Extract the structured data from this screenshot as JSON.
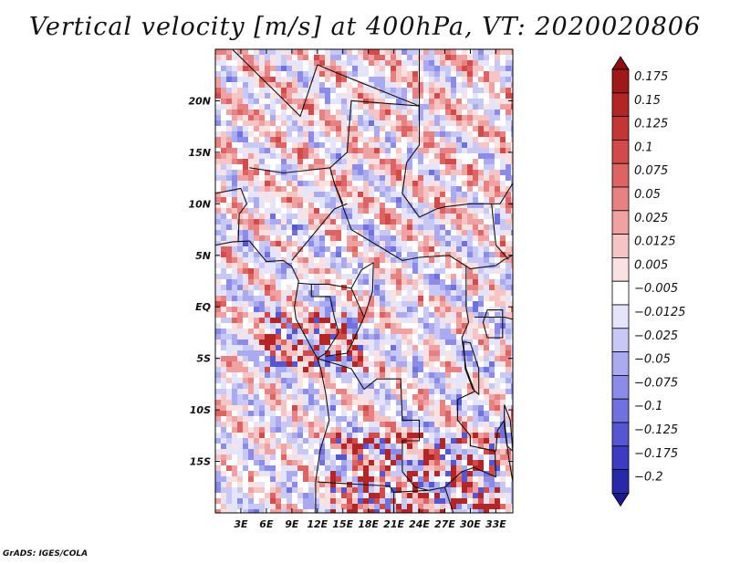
{
  "title": "Vertical velocity [m/s] at 400hPa, VT: 2020020806",
  "footer": "GrADS: IGES/COLA",
  "map": {
    "lon_range": [
      0,
      35
    ],
    "lat_range": [
      -20,
      25
    ],
    "lat_ticks": [
      {
        "value": 20,
        "label": "20N"
      },
      {
        "value": 15,
        "label": "15N"
      },
      {
        "value": 10,
        "label": "10N"
      },
      {
        "value": 5,
        "label": "5N"
      },
      {
        "value": 0,
        "label": "EQ"
      },
      {
        "value": -5,
        "label": "5S"
      },
      {
        "value": -10,
        "label": "10S"
      },
      {
        "value": -15,
        "label": "15S"
      }
    ],
    "lon_ticks": [
      {
        "value": 3,
        "label": "3E"
      },
      {
        "value": 6,
        "label": "6E"
      },
      {
        "value": 9,
        "label": "9E"
      },
      {
        "value": 12,
        "label": "12E"
      },
      {
        "value": 15,
        "label": "15E"
      },
      {
        "value": 18,
        "label": "18E"
      },
      {
        "value": 21,
        "label": "21E"
      },
      {
        "value": 24,
        "label": "24E"
      },
      {
        "value": 27,
        "label": "27E"
      },
      {
        "value": 30,
        "label": "30E"
      },
      {
        "value": 33,
        "label": "33E"
      }
    ]
  },
  "colorbar": {
    "levels": [
      {
        "label": "0.175",
        "color": "#a01818"
      },
      {
        "label": "0.15",
        "color": "#b42626"
      },
      {
        "label": "0.125",
        "color": "#c43636"
      },
      {
        "label": "0.1",
        "color": "#d24a4a"
      },
      {
        "label": "0.075",
        "color": "#de6464"
      },
      {
        "label": "0.05",
        "color": "#e88282"
      },
      {
        "label": "0.025",
        "color": "#f0a2a2"
      },
      {
        "label": "0.0125",
        "color": "#f7c4c4"
      },
      {
        "label": "0.005",
        "color": "#fbe2e2"
      },
      {
        "label": "−0.005",
        "color": "#ffffff"
      },
      {
        "label": "−0.0125",
        "color": "#e4e4fb"
      },
      {
        "label": "−0.025",
        "color": "#c8c8f6"
      },
      {
        "label": "−0.05",
        "color": "#aaaaf0"
      },
      {
        "label": "−0.075",
        "color": "#8c8ce8"
      },
      {
        "label": "−0.1",
        "color": "#7070de"
      },
      {
        "label": "−0.125",
        "color": "#5656d2"
      },
      {
        "label": "−0.175",
        "color": "#3c3cc2"
      },
      {
        "label": "−0.2",
        "color": "#2828aa"
      }
    ],
    "top_extension_color": "#8c1010",
    "bottom_extension_color": "#1a1a90"
  }
}
